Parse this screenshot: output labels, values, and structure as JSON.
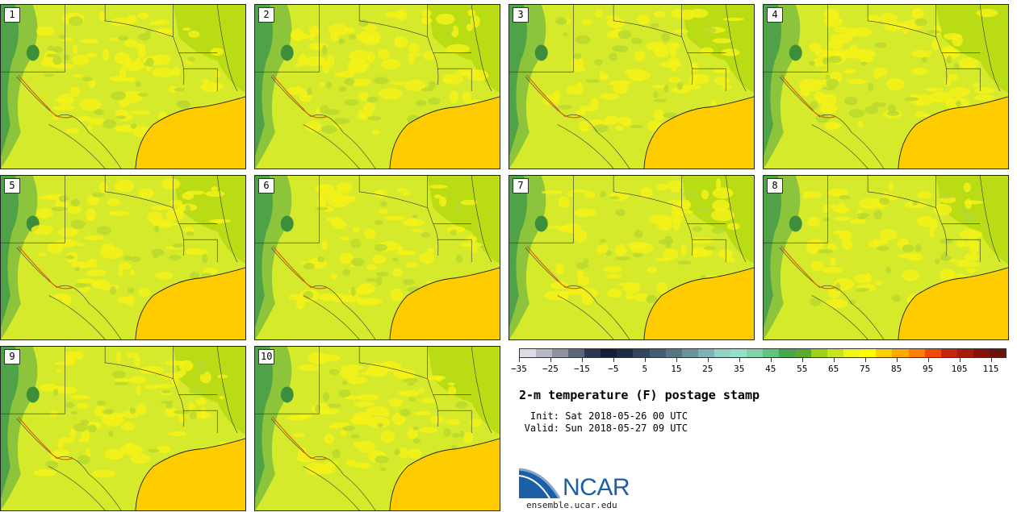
{
  "figure": {
    "title": "2-m temperature (F) postage stamp",
    "init_label": "Init:",
    "init_value": "Sat 2018-05-26 00 UTC",
    "valid_label": "Valid:",
    "valid_value": "Sun 2018-05-27 09 UTC"
  },
  "members": [
    "1",
    "2",
    "3",
    "4",
    "5",
    "6",
    "7",
    "8",
    "9",
    "10"
  ],
  "colorbar": {
    "ticks": [
      "-35",
      "-25",
      "-15",
      "-5",
      "5",
      "15",
      "25",
      "35",
      "45",
      "55",
      "65",
      "75",
      "85",
      "95",
      "105",
      "115"
    ],
    "colors": [
      "#dcdde6",
      "#b6b9c4",
      "#8c92a0",
      "#5e6679",
      "#2c3850",
      "#141f35",
      "#1d2d45",
      "#32475f",
      "#445d70",
      "#567684",
      "#6a949c",
      "#7fb2b2",
      "#92d3c6",
      "#92e0cc",
      "#82d4a8",
      "#64c47e",
      "#46a64a",
      "#5aaa2c",
      "#9ed014",
      "#c8e41e",
      "#f0f51a",
      "#ffff00",
      "#ffd000",
      "#ffaa00",
      "#ff7f00",
      "#f04a05",
      "#c8250a",
      "#a81a0c",
      "#861208",
      "#6a140a"
    ],
    "min": -35,
    "max": 120
  },
  "logo": {
    "name": "NCAR",
    "site": "ensemble.ucar.edu"
  }
}
